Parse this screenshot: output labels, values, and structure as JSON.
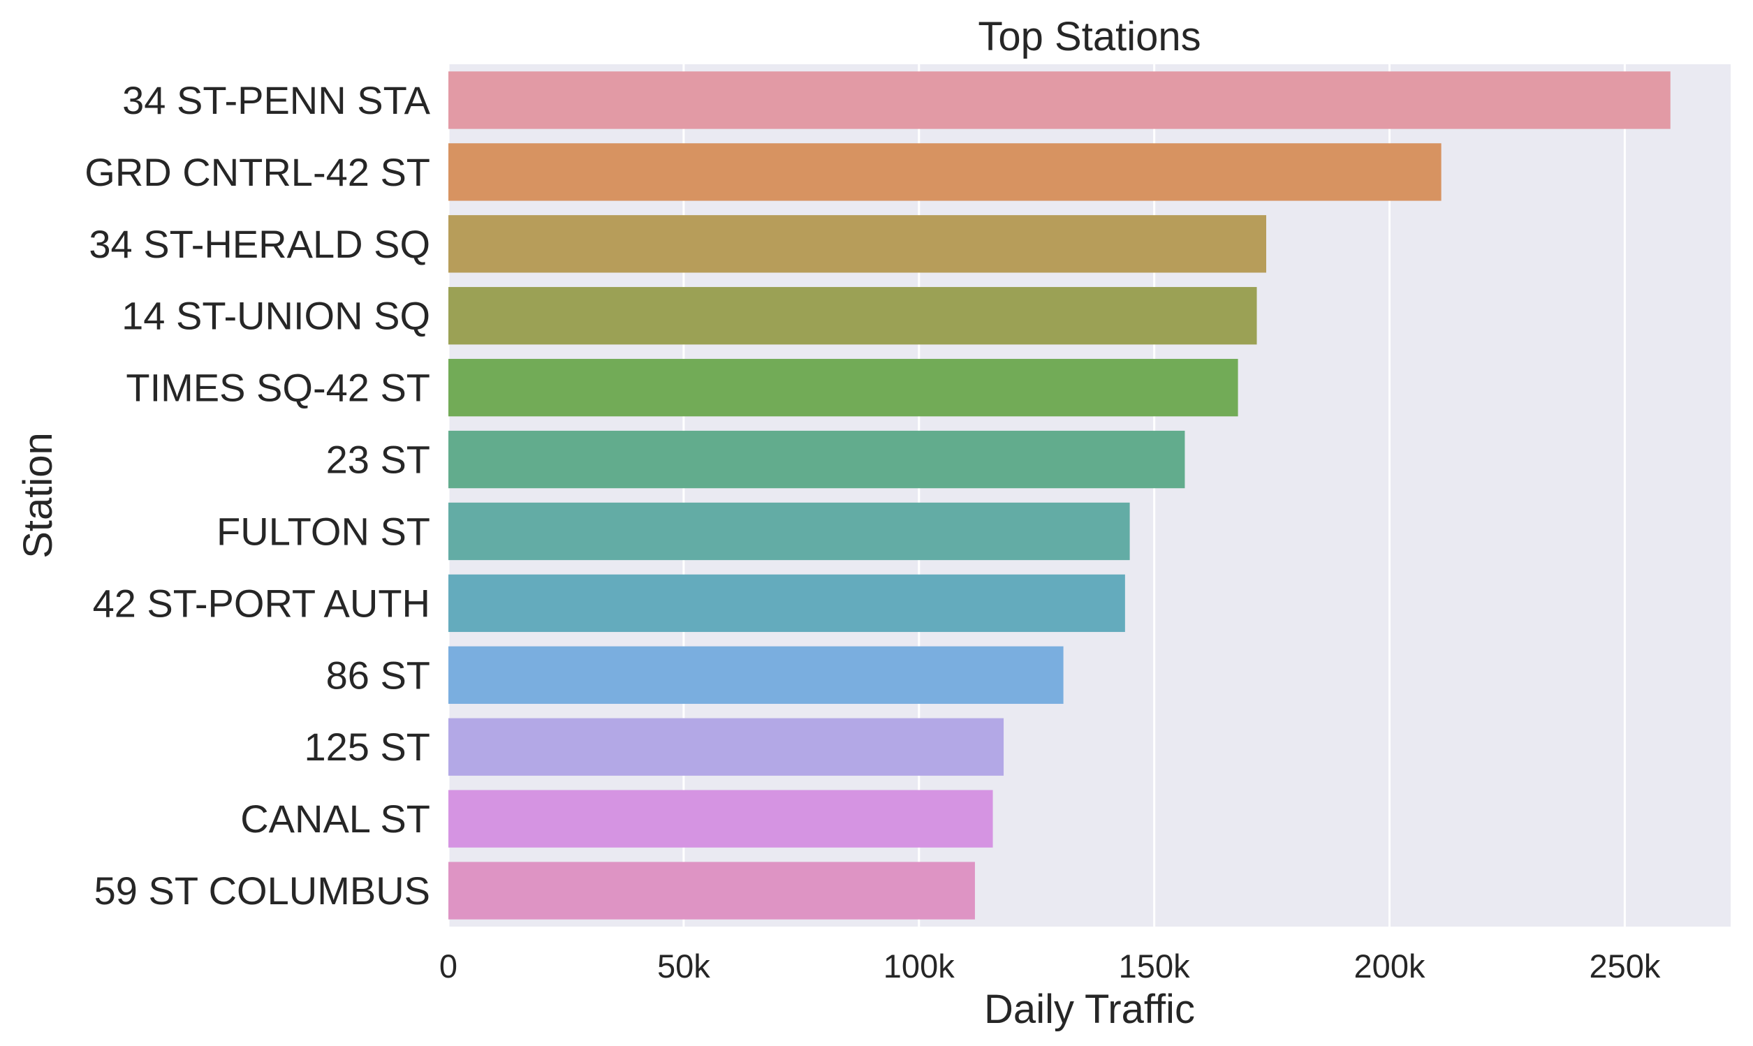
{
  "chart_data": {
    "type": "bar",
    "orientation": "horizontal",
    "title": "Top Stations",
    "xlabel": "Daily Traffic",
    "ylabel": "Station",
    "categories": [
      "34 ST-PENN STA",
      "GRD CNTRL-42 ST",
      "34 ST-HERALD SQ",
      "14 ST-UNION SQ",
      "TIMES SQ-42 ST",
      "23 ST",
      "FULTON ST",
      "42 ST-PORT AUTH",
      "86 ST",
      "125 ST",
      "CANAL ST",
      "59 ST COLUMBUS"
    ],
    "values": [
      259700,
      211000,
      173800,
      171800,
      167800,
      156500,
      144800,
      143800,
      130700,
      118000,
      115700,
      111900
    ],
    "colors": [
      "#e29aa5",
      "#d79361",
      "#b79d5a",
      "#9ba155",
      "#72ab57",
      "#62ac8d",
      "#63aca5",
      "#64abbd",
      "#7aaedf",
      "#b3a8e6",
      "#d594e2",
      "#de94c4"
    ],
    "xlim": [
      0,
      272500
    ],
    "xticks": [
      0,
      50000,
      100000,
      150000,
      200000,
      250000
    ],
    "xtick_labels": [
      "0",
      "50k",
      "100k",
      "150k",
      "200k",
      "250k"
    ],
    "grid": "vertical",
    "style": {
      "plot_background": "#eaeaf2",
      "grid_color": "#ffffff",
      "text_color": "#262626"
    }
  }
}
